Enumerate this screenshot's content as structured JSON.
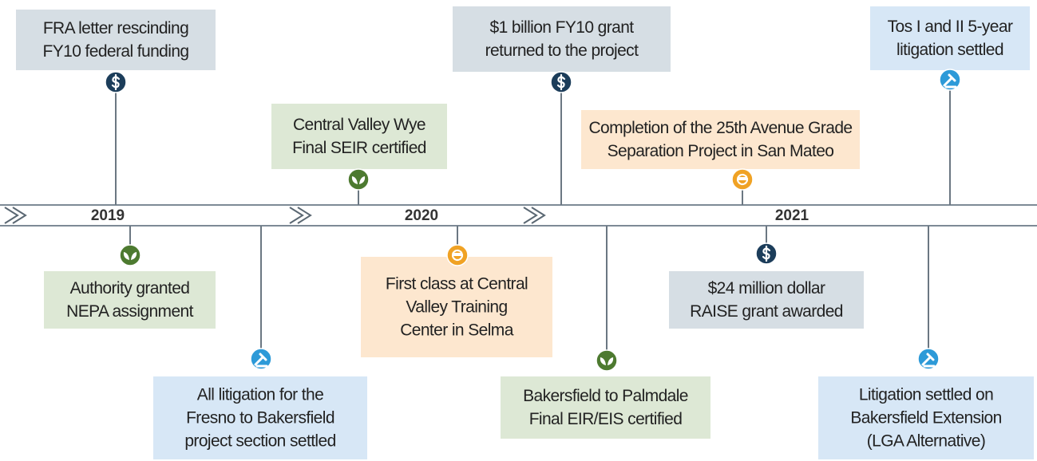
{
  "timeline": {
    "years": [
      "2019",
      "2020",
      "2021"
    ],
    "events": [
      {
        "lines": [
          "FRA letter rescinding",
          "FY10 federal funding"
        ]
      },
      {
        "lines": [
          "Authority granted",
          "NEPA assignment"
        ]
      },
      {
        "lines": [
          "All litigation for the",
          "Fresno to Bakersfield",
          "project section settled"
        ]
      },
      {
        "lines": [
          "Central Valley Wye",
          "Final SEIR certified"
        ]
      },
      {
        "lines": [
          "First class at Central",
          "Valley Training",
          "Center in Selma"
        ]
      },
      {
        "lines": [
          "$1 billion FY10 grant",
          "returned to the project"
        ]
      },
      {
        "lines": [
          "Bakersfield to Palmdale",
          "Final EIR/EIS certified"
        ]
      },
      {
        "lines": [
          "Completion of the 25th Avenue Grade",
          "Separation Project in San Mateo"
        ]
      },
      {
        "lines": [
          "$24 million dollar",
          "RAISE grant awarded"
        ]
      },
      {
        "lines": [
          "Tos I and II 5-year",
          "litigation settled"
        ]
      },
      {
        "lines": [
          "Litigation settled on",
          "Bakersfield Extension",
          "(LGA Alternative)"
        ]
      }
    ]
  }
}
